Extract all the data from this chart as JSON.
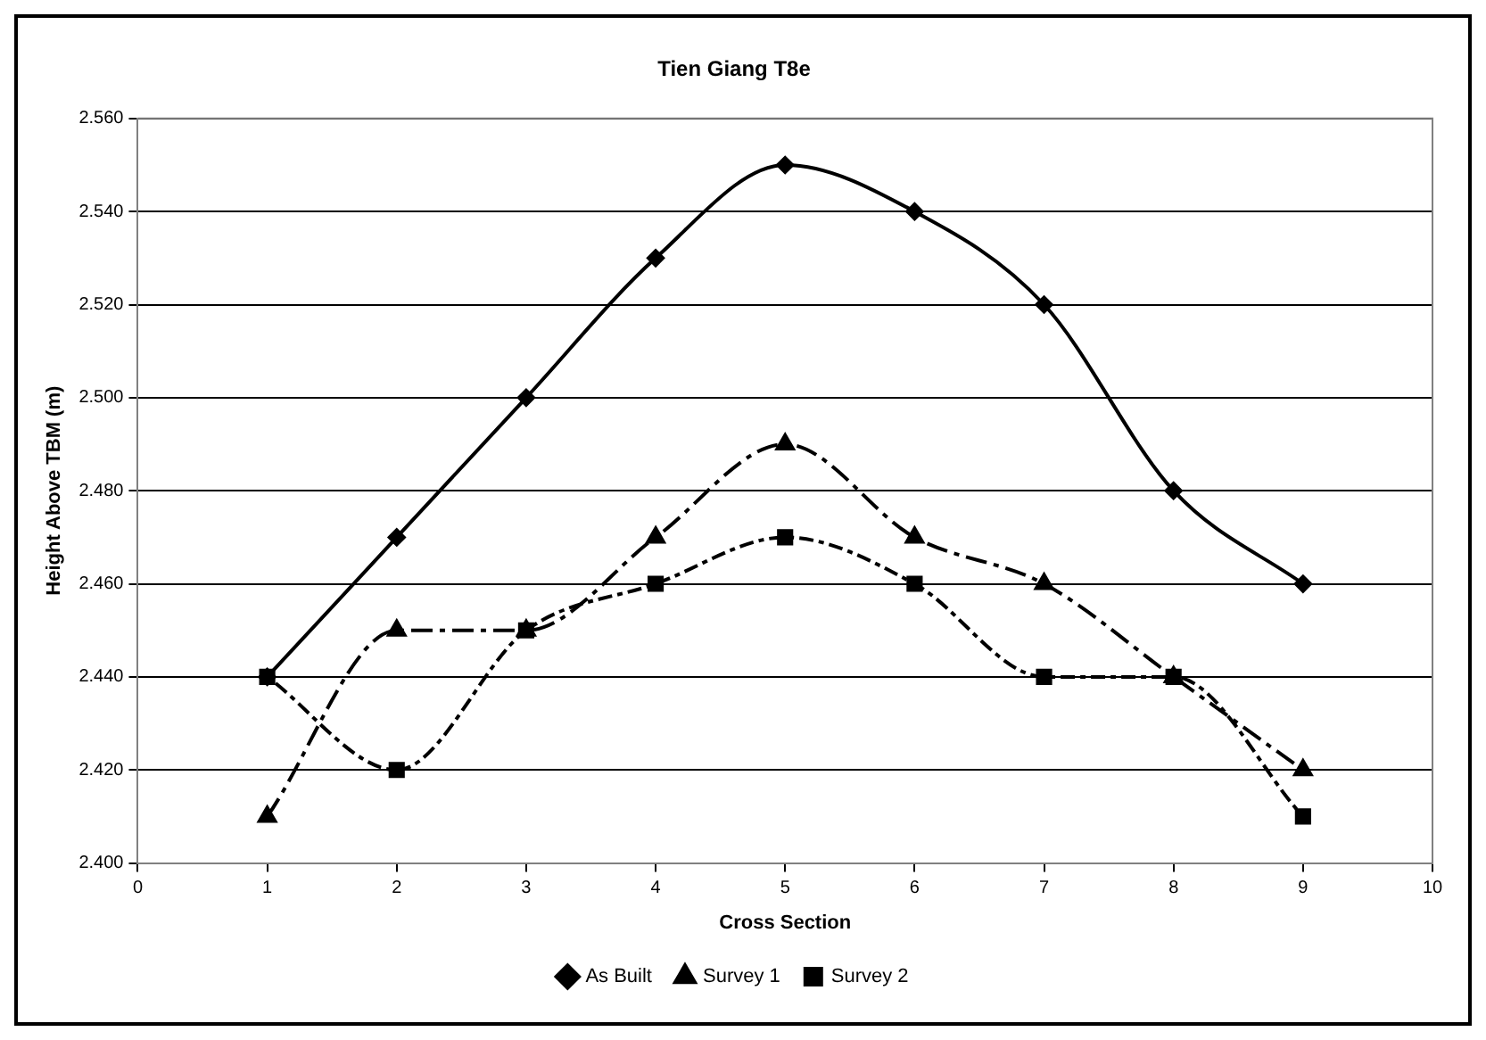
{
  "chart_data": {
    "type": "line",
    "title": "Tien Giang T8e",
    "xlabel": "Cross Section",
    "ylabel": "Height Above TBM (m)",
    "x": [
      1,
      2,
      3,
      4,
      5,
      6,
      7,
      8,
      9
    ],
    "series": [
      {
        "name": "As Built",
        "color": "#000000",
        "marker": "diamond",
        "line_style": "solid",
        "values": [
          2.44,
          2.47,
          2.5,
          2.53,
          2.55,
          2.54,
          2.52,
          2.48,
          2.46
        ]
      },
      {
        "name": "Survey 1",
        "color": "#000000",
        "marker": "triangle",
        "line_style": "dashed",
        "values": [
          2.41,
          2.45,
          2.45,
          2.47,
          2.49,
          2.47,
          2.46,
          2.44,
          2.42
        ]
      },
      {
        "name": "Survey 2",
        "color": "#000000",
        "marker": "square",
        "line_style": "dotted",
        "values": [
          2.44,
          2.42,
          2.45,
          2.46,
          2.47,
          2.46,
          2.44,
          2.44,
          2.41
        ]
      }
    ],
    "xlim": [
      0,
      10
    ],
    "xticks": [
      0,
      1,
      2,
      3,
      4,
      5,
      6,
      7,
      8,
      9,
      10
    ],
    "ylim": [
      2.4,
      2.56
    ],
    "yticks": [
      {
        "value": 2.4,
        "label": "2.400"
      },
      {
        "value": 2.42,
        "label": "2.420"
      },
      {
        "value": 2.44,
        "label": "2.440"
      },
      {
        "value": 2.46,
        "label": "2.460"
      },
      {
        "value": 2.48,
        "label": "2.480"
      },
      {
        "value": 2.5,
        "label": "2.500"
      },
      {
        "value": 2.52,
        "label": "2.520"
      },
      {
        "value": 2.54,
        "label": "2.540"
      },
      {
        "value": 2.56,
        "label": "2.560"
      }
    ],
    "grid": "y",
    "legend": "bottom"
  }
}
